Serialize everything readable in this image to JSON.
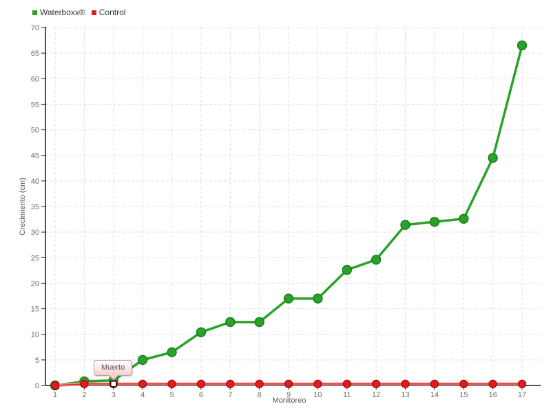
{
  "legend": {
    "items": [
      {
        "label": "Waterboxx®",
        "color": "#28a228"
      },
      {
        "label": "Control",
        "color": "#e31b1b"
      }
    ]
  },
  "chart_data": {
    "type": "line",
    "x": [
      1,
      2,
      3,
      4,
      5,
      6,
      7,
      8,
      9,
      10,
      11,
      12,
      13,
      14,
      15,
      16,
      17
    ],
    "xlabel": "Monitoreo",
    "ylabel": "Crecimiento (cm)",
    "ylim": [
      0,
      70
    ],
    "ytick_step": 5,
    "grid": "dashed",
    "legend_position": "top-left",
    "series": [
      {
        "name": "Waterboxx®",
        "color": "#28a228",
        "marker_stroke": "#1c7a1c",
        "values": [
          0,
          0.8,
          1,
          5,
          6.5,
          10.4,
          12.4,
          12.4,
          17,
          17,
          22.6,
          24.6,
          31.4,
          32,
          32.6,
          44.5,
          66.5
        ]
      },
      {
        "name": "Control",
        "color": "#e31b1b",
        "line_color": "#e02626",
        "halo": "#f59f9f",
        "marker_stroke": "#a51111",
        "values": [
          0,
          0.3,
          0.3,
          0.3,
          0.3,
          0.3,
          0.3,
          0.3,
          0.3,
          0.3,
          0.3,
          0.3,
          0.3,
          0.3,
          0.3,
          0.3,
          0.3
        ]
      }
    ],
    "annotations": [
      {
        "text": "Muerto",
        "series": "Control",
        "x": 3,
        "marker": "white-square"
      }
    ]
  },
  "colors": {
    "background": "#ffffff",
    "grid": "#dddddd",
    "axis": "#1a1a1a",
    "tick_label": "#6b6b6b",
    "axis_title": "#555555",
    "legend_text": "#333333",
    "tooltip_border": "#a9a9a9",
    "tooltip_background": "#f9cdcd",
    "tooltip_text": "#555555",
    "dead_marker_fill": "#ffffff",
    "dead_marker_stroke": "#000000"
  }
}
